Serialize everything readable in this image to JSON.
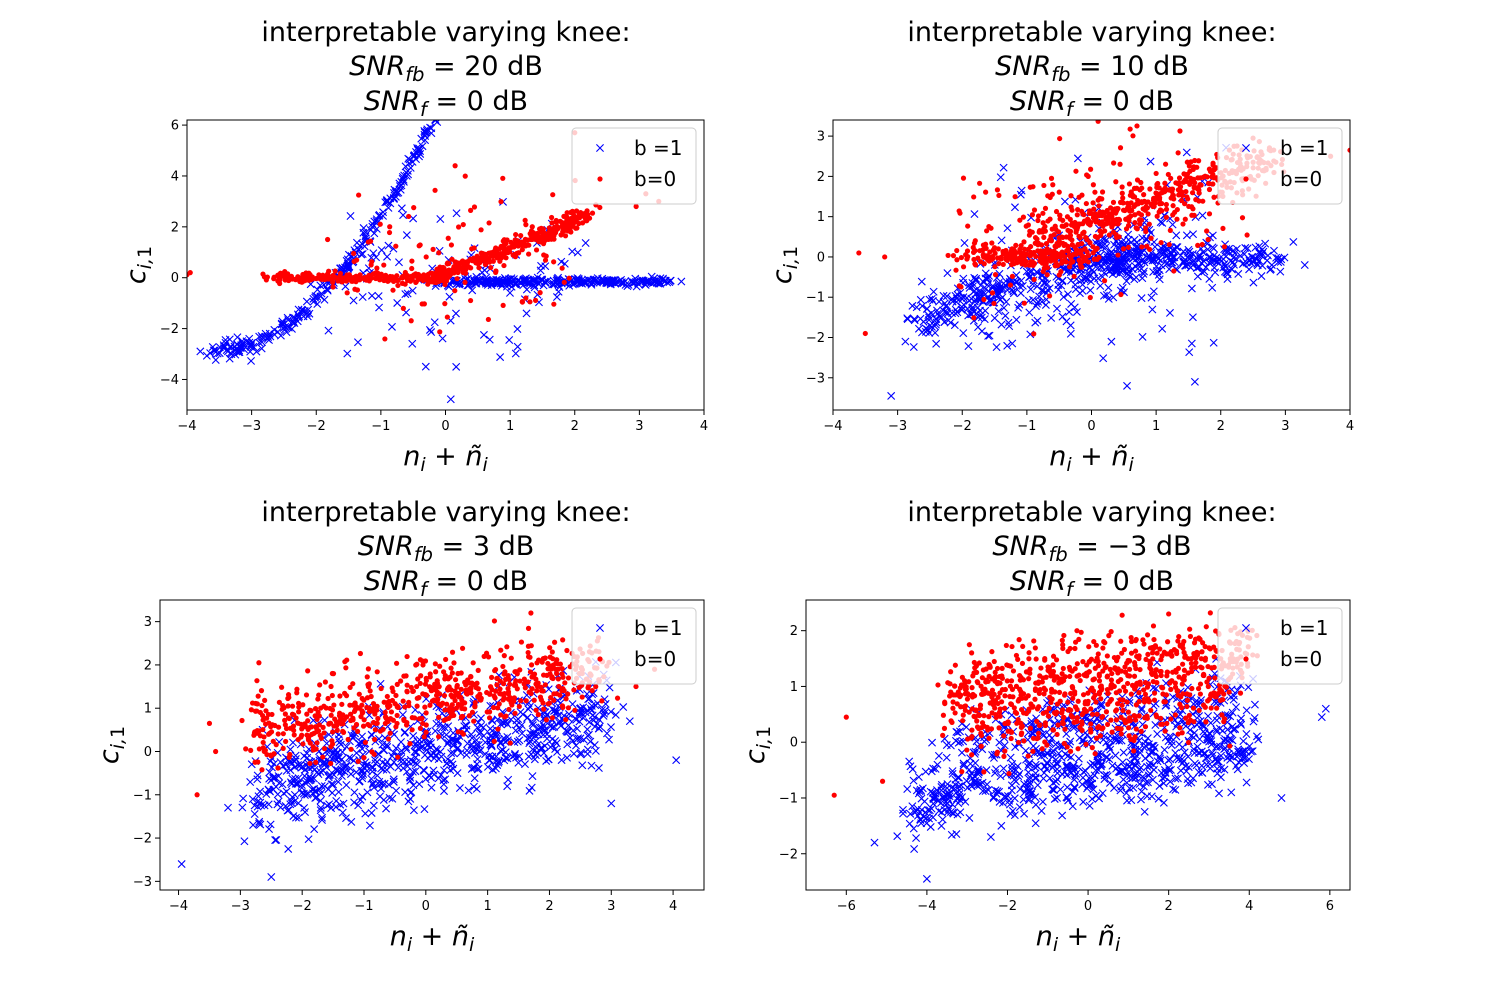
{
  "chart_data": [
    {
      "type": "scatter",
      "title": [
        "interpretable varying knee:",
        "SNR_fb = 20 dB",
        "SNR_f = 0 dB"
      ],
      "title_math": [
        {
          "pre": "SNR",
          "sub": "fb",
          "post": " = 20 dB"
        },
        {
          "pre": "SNR",
          "sub": "f",
          "post": " = 0 dB"
        }
      ],
      "xlabel": "n_i + ñ_i",
      "ylabel": "c_i,1",
      "xlim": [
        -4,
        4
      ],
      "ylim": [
        -5.2,
        6.2
      ],
      "xticks": [
        -4,
        -3,
        -2,
        -1,
        0,
        1,
        2,
        3,
        4
      ],
      "yticks": [
        -4,
        -2,
        0,
        2,
        4,
        6
      ],
      "legend": {
        "placement": "upper right",
        "entries": [
          {
            "label": "b =1",
            "marker": "x",
            "color": "#0000ff"
          },
          {
            "label": "b=0",
            "marker": "dot",
            "color": "#ff0000"
          }
        ]
      },
      "series": [
        {
          "label_ref": 0,
          "marker": "x",
          "color": "#0000ff",
          "clusters": [
            {
              "x_range": [
                -3.5,
                0.8
              ],
              "line": [
                -2.9,
                0.25,
                0.75
              ],
              "noise": 0.2,
              "count": 320
            },
            {
              "x_range": [
                0.0,
                3.5
              ],
              "line": [
                -0.15,
                0.0,
                0.0
              ],
              "noise": 0.08,
              "count": 280
            },
            {
              "x_range": [
                -1.7,
                2.0
              ],
              "line": [
                0.0,
                0.0,
                0.0
              ],
              "noise": 1.6,
              "count": 110
            }
          ]
        },
        {
          "label_ref": 1,
          "marker": "dot",
          "color": "#ff0000",
          "clusters": [
            {
              "x_range": [
                -2.7,
                0.0
              ],
              "line": [
                0.0,
                0.0,
                0.0
              ],
              "noise": 0.1,
              "count": 220
            },
            {
              "x_range": [
                -0.3,
                2.2
              ],
              "line": [
                0.0,
                0.75,
                0.1
              ],
              "noise": 0.18,
              "count": 330
            },
            {
              "x_range": [
                -1.7,
                2.0
              ],
              "line": [
                0.2,
                0.3,
                0.0
              ],
              "noise": 1.4,
              "count": 100
            },
            {
              "points": [
                [
                  -3.95,
                  0.2
                ],
                [
                  -4.0,
                  0.12
                ],
                [
                  2.0,
                  5.7
                ],
                [
                  3.1,
                  3.3
                ],
                [
                  3.3,
                  3.0
                ],
                [
                  2.95,
                  2.8
                ]
              ]
            }
          ]
        }
      ]
    },
    {
      "type": "scatter",
      "title": [
        "interpretable varying knee:",
        "SNR_fb = 10 dB",
        "SNR_f = 0 dB"
      ],
      "title_math": [
        {
          "pre": "SNR",
          "sub": "fb",
          "post": " = 10 dB"
        },
        {
          "pre": "SNR",
          "sub": "f",
          "post": " = 0 dB"
        }
      ],
      "xlabel": "n_i + ñ_i",
      "ylabel": "c_i,1",
      "xlim": [
        -4,
        4
      ],
      "ylim": [
        -3.8,
        3.4
      ],
      "xticks": [
        -4,
        -3,
        -2,
        -1,
        0,
        1,
        2,
        3,
        4
      ],
      "yticks": [
        -3,
        -2,
        -1,
        0,
        1,
        2,
        3
      ],
      "legend": {
        "placement": "upper right",
        "entries": [
          {
            "label": "b =1",
            "marker": "x",
            "color": "#0000ff"
          },
          {
            "label": "b=0",
            "marker": "dot",
            "color": "#ff0000"
          }
        ]
      },
      "series": [
        {
          "label_ref": 0,
          "marker": "x",
          "color": "#0000ff",
          "clusters": [
            {
              "x_range": [
                -2.8,
                1.0
              ],
              "line": [
                -1.6,
                0.55,
                0.0
              ],
              "noise": 0.35,
              "count": 380
            },
            {
              "x_range": [
                0.0,
                2.8
              ],
              "line": [
                -0.05,
                0.0,
                0.0
              ],
              "noise": 0.2,
              "count": 260
            },
            {
              "x_range": [
                -2.0,
                1.9
              ],
              "line": [
                -0.9,
                0.2,
                0.0
              ],
              "noise": 1.1,
              "count": 150
            },
            {
              "points": [
                [
                  -3.1,
                  -3.45
                ],
                [
                  3.3,
                  -0.2
                ],
                [
                  0.55,
                  -3.2
                ],
                [
                  1.6,
                  -3.1
                ]
              ]
            }
          ]
        },
        {
          "label_ref": 1,
          "marker": "dot",
          "color": "#ff0000",
          "clusters": [
            {
              "x_range": [
                -2.0,
                0.0
              ],
              "line": [
                0.0,
                0.0,
                0.0
              ],
              "noise": 0.15,
              "count": 200
            },
            {
              "x_range": [
                -1.0,
                2.8
              ],
              "line": [
                0.3,
                0.55,
                0.0
              ],
              "noise": 0.35,
              "count": 430
            },
            {
              "x_range": [
                -2.0,
                2.0
              ],
              "line": [
                0.4,
                0.3,
                0.0
              ],
              "noise": 1.0,
              "count": 150
            },
            {
              "points": [
                [
                  -3.6,
                  0.1
                ],
                [
                  -3.5,
                  -1.9
                ],
                [
                  -3.2,
                  0.0
                ],
                [
                  4.0,
                  2.65
                ],
                [
                  3.7,
                  2.5
                ],
                [
                  2.5,
                  2.95
                ]
              ]
            }
          ]
        }
      ]
    },
    {
      "type": "scatter",
      "title": [
        "interpretable varying knee:",
        "SNR_fb = 3 dB",
        "SNR_f = 0 dB"
      ],
      "title_math": [
        {
          "pre": "SNR",
          "sub": "fb",
          "post": " = 3 dB"
        },
        {
          "pre": "SNR",
          "sub": "f",
          "post": " = 0 dB"
        }
      ],
      "xlabel": "n_i + ñ_i",
      "ylabel": "c_i,1",
      "xlim": [
        -4.3,
        4.5
      ],
      "ylim": [
        -3.2,
        3.5
      ],
      "xticks": [
        -4,
        -3,
        -2,
        -1,
        0,
        1,
        2,
        3,
        4
      ],
      "yticks": [
        -3,
        -2,
        -1,
        0,
        1,
        2,
        3
      ],
      "legend": {
        "placement": "upper right",
        "entries": [
          {
            "label": "b =1",
            "marker": "x",
            "color": "#0000ff"
          },
          {
            "label": "b=0",
            "marker": "dot",
            "color": "#ff0000"
          }
        ]
      },
      "series": [
        {
          "label_ref": 0,
          "marker": "x",
          "color": "#0000ff",
          "clusters": [
            {
              "x_range": [
                -2.8,
                2.9
              ],
              "line": [
                -0.85,
                0.3,
                0.0
              ],
              "noise": 0.55,
              "count": 800
            },
            {
              "points": [
                [
                  -3.95,
                  -2.6
                ],
                [
                  4.05,
                  -0.2
                ],
                [
                  -2.5,
                  -2.9
                ],
                [
                  -3.2,
                  -1.3
                ],
                [
                  3.3,
                  0.7
                ],
                [
                  3.0,
                  -1.2
                ]
              ]
            }
          ]
        },
        {
          "label_ref": 1,
          "marker": "dot",
          "color": "#ff0000",
          "clusters": [
            {
              "x_range": [
                -2.8,
                2.9
              ],
              "line": [
                0.5,
                0.25,
                0.0
              ],
              "noise": 0.45,
              "count": 680
            },
            {
              "points": [
                [
                  -3.7,
                  -1.0
                ],
                [
                  -3.5,
                  0.65
                ],
                [
                  -3.4,
                  0.0
                ],
                [
                  -2.7,
                  2.05
                ],
                [
                  1.7,
                  3.2
                ],
                [
                  3.7,
                  1.9
                ],
                [
                  3.4,
                  1.5
                ]
              ]
            }
          ]
        }
      ]
    },
    {
      "type": "scatter",
      "title": [
        "interpretable varying knee:",
        "SNR_fb = −3 dB",
        "SNR_f = 0 dB"
      ],
      "title_math": [
        {
          "pre": "SNR",
          "sub": "fb",
          "post": " = −3 dB"
        },
        {
          "pre": "SNR",
          "sub": "f",
          "post": " = 0 dB"
        }
      ],
      "xlabel": "n_i + ñ_i",
      "ylabel": "c_i,1",
      "xlim": [
        -7.0,
        6.5
      ],
      "ylim": [
        -2.65,
        2.55
      ],
      "xticks": [
        -6,
        -4,
        -2,
        0,
        2,
        4,
        6
      ],
      "yticks": [
        -2,
        -1,
        0,
        1,
        2
      ],
      "legend": {
        "placement": "upper right",
        "entries": [
          {
            "label": "b =1",
            "marker": "x",
            "color": "#0000ff"
          },
          {
            "label": "b=0",
            "marker": "dot",
            "color": "#ff0000"
          }
        ]
      },
      "series": [
        {
          "label_ref": 0,
          "marker": "x",
          "color": "#0000ff",
          "clusters": [
            {
              "x_range": [
                -4.5,
                4.0
              ],
              "line": [
                -1.0,
                0.1,
                0.0
              ],
              "noise": 0.35,
              "count": 620
            },
            {
              "x_range": [
                -3.5,
                4.0
              ],
              "line": [
                0.0,
                0.1,
                0.0
              ],
              "noise": 0.3,
              "count": 260
            },
            {
              "points": [
                [
                  -4.0,
                  -2.45
                ],
                [
                  5.8,
                  0.45
                ],
                [
                  5.9,
                  0.6
                ],
                [
                  -5.3,
                  -1.8
                ],
                [
                  4.8,
                  -1.0
                ]
              ]
            }
          ]
        },
        {
          "label_ref": 1,
          "marker": "dot",
          "color": "#ff0000",
          "clusters": [
            {
              "x_range": [
                -3.5,
                4.0
              ],
              "line": [
                0.9,
                0.1,
                0.0
              ],
              "noise": 0.33,
              "count": 520
            },
            {
              "x_range": [
                -3.0,
                3.5
              ],
              "line": [
                0.2,
                0.1,
                0.0
              ],
              "noise": 0.3,
              "count": 300
            },
            {
              "points": [
                [
                  -6.3,
                  -0.95
                ],
                [
                  -6.0,
                  0.45
                ],
                [
                  -5.1,
                  -0.7
                ],
                [
                  4.2,
                  1.55
                ],
                [
                  2.0,
                  2.3
                ]
              ]
            }
          ]
        }
      ]
    }
  ]
}
